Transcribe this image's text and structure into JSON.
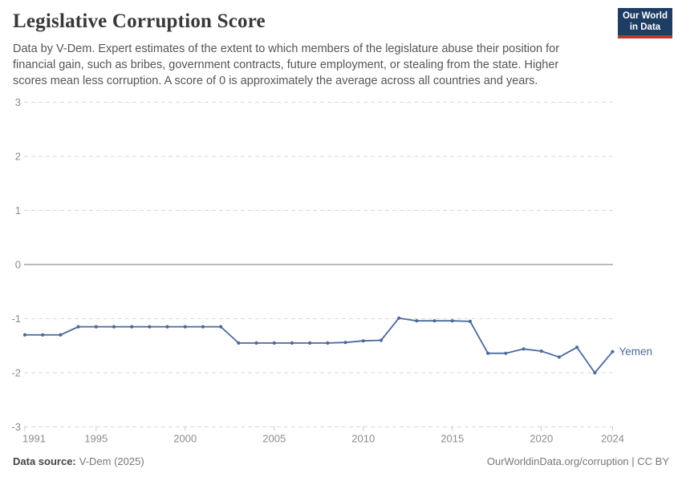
{
  "header": {
    "title": "Legislative Corruption Score",
    "subtitle": "Data by V-Dem. Expert estimates of the extent to which members of the legislature abuse their position for financial gain, such as bribes, government contracts, future employment, or stealing from the state. Higher scores mean less corruption. A score of 0 is approximately the average across all countries and years.",
    "logo": {
      "line1": "Our World",
      "line2": "in Data",
      "bg_color": "#1d3d63",
      "accent_color": "#c0362c"
    }
  },
  "chart_data": {
    "type": "line",
    "title": "Legislative Corruption Score",
    "x": [
      1991,
      1992,
      1993,
      1994,
      1995,
      1996,
      1997,
      1998,
      1999,
      2000,
      2001,
      2002,
      2003,
      2004,
      2005,
      2006,
      2007,
      2008,
      2009,
      2010,
      2011,
      2012,
      2013,
      2014,
      2015,
      2016,
      2017,
      2018,
      2019,
      2020,
      2021,
      2022,
      2023,
      2024
    ],
    "series": [
      {
        "name": "Yemen",
        "color": "#4c6a9c",
        "values": [
          -1.3,
          -1.3,
          -1.3,
          -1.15,
          -1.15,
          -1.15,
          -1.15,
          -1.15,
          -1.15,
          -1.15,
          -1.15,
          -1.15,
          -1.45,
          -1.45,
          -1.45,
          -1.45,
          -1.45,
          -1.45,
          -1.44,
          -1.41,
          -1.4,
          -0.99,
          -1.04,
          -1.04,
          -1.04,
          -1.05,
          -1.64,
          -1.64,
          -1.56,
          -1.6,
          -1.71,
          -1.53,
          -2.0,
          -1.61
        ]
      }
    ],
    "xlabel": "",
    "ylabel": "",
    "ylim": [
      -3,
      3
    ],
    "yticks": [
      3,
      2,
      1,
      0,
      -1,
      -2,
      -3
    ],
    "xticks": [
      1991,
      1995,
      2000,
      2005,
      2010,
      2015,
      2020,
      2024
    ],
    "grid": "horizontal-dashed",
    "zero_line": true,
    "legend_position": "end-of-line"
  },
  "footer": {
    "source_label": "Data source:",
    "source_value": "V-Dem (2025)",
    "credit": "OurWorldinData.org/corruption | CC BY"
  },
  "colors": {
    "line": "#4c6a9c",
    "gridline": "#dadada",
    "zero_line": "#a3a3a3",
    "tick_text": "#8b8b8b",
    "x_tick_mark": "#cccccc"
  }
}
